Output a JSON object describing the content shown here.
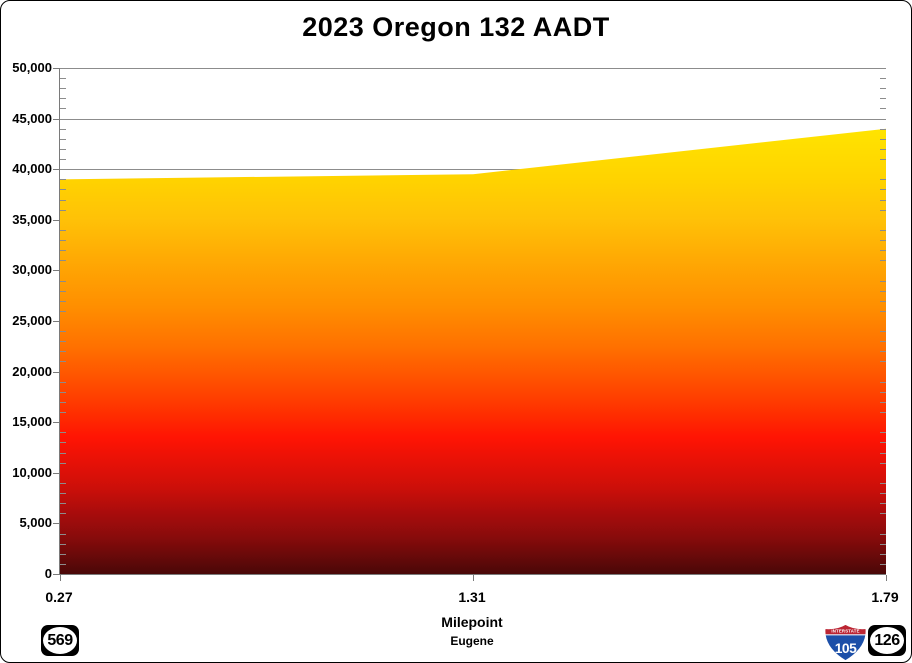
{
  "title": "2023 Oregon 132 AADT",
  "chart_data": {
    "type": "area",
    "title": "2023 Oregon 132 AADT",
    "x": [
      0.27,
      1.31,
      1.79
    ],
    "x_tick_labels": [
      "0.27",
      "1.31",
      "1.79"
    ],
    "values": [
      39000,
      39500,
      44000
    ],
    "series_name": "AADT",
    "xlabel": "Milepoint",
    "region_label": "Eugene",
    "ylim": [
      0,
      50000
    ],
    "ytick_step": 5000,
    "minor_tick_step": 1000,
    "ytick_labels": [
      "0",
      "5,000",
      "10,000",
      "15,000",
      "20,000",
      "25,000",
      "30,000",
      "35,000",
      "40,000",
      "45,000",
      "50,000"
    ],
    "grid": "horizontal-major",
    "legend": "none",
    "x_axis_spacing": "categorical-even",
    "fill_style": "vertical gradient mapped to value axis, yellow at high AADT to dark red at zero",
    "gradient_stops": [
      {
        "pos": 0,
        "color": "#FFF400"
      },
      {
        "pos": 12,
        "color": "#FFE400"
      },
      {
        "pos": 22,
        "color": "#FFD300"
      },
      {
        "pos": 30,
        "color": "#FFC107"
      },
      {
        "pos": 40,
        "color": "#FFA303"
      },
      {
        "pos": 47,
        "color": "#FF8F00"
      },
      {
        "pos": 55,
        "color": "#FF7100"
      },
      {
        "pos": 62,
        "color": "#FF4F00"
      },
      {
        "pos": 68,
        "color": "#FF3000"
      },
      {
        "pos": 73,
        "color": "#FF1403"
      },
      {
        "pos": 78,
        "color": "#E61107"
      },
      {
        "pos": 83,
        "color": "#CC0F09"
      },
      {
        "pos": 88,
        "color": "#A80C0C"
      },
      {
        "pos": 93,
        "color": "#860B0B"
      },
      {
        "pos": 100,
        "color": "#4A0808"
      }
    ]
  },
  "shields": {
    "route_569": {
      "number": "569",
      "fg": "#000000",
      "bg": "#FFFFFF"
    },
    "interstate_105": {
      "banner": "INTERSTATE",
      "number": "105",
      "blue": "#1C4FA8",
      "red": "#BC2533"
    },
    "route_126": {
      "number": "126",
      "fg": "#000000",
      "bg": "#FFFFFF"
    }
  },
  "colors": {
    "grid": "#8C8C8C",
    "axis": "#7A7A7A",
    "text": "#000000",
    "background": "#FFFFFF"
  }
}
